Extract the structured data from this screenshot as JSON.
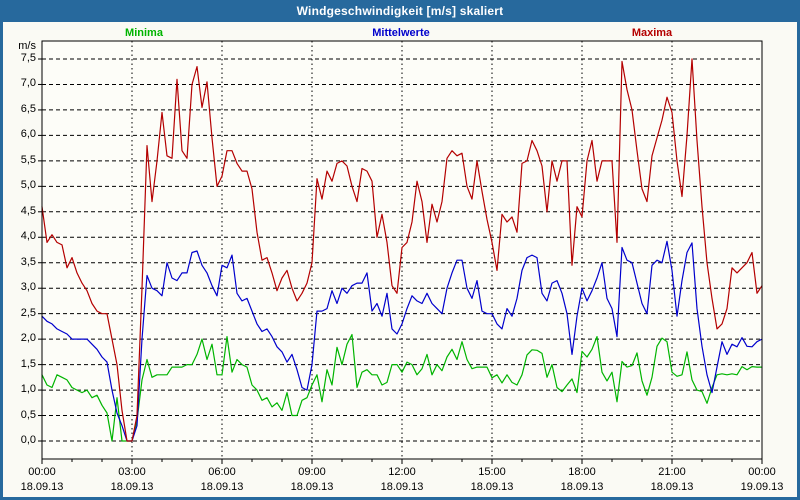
{
  "window": {
    "title": "Windgeschwindigkeit [m/s] skaliert"
  },
  "colors": {
    "frame": "#27699d",
    "titlebar": "#27699d",
    "title_text": "#ffffff",
    "page_bg": "#fafaf4",
    "plot_bg": "#fdfdf8",
    "grid": "#000000",
    "text": "#000000"
  },
  "legend": {
    "items": [
      {
        "label": "Minima",
        "color": "#00b400"
      },
      {
        "label": "Mittelwerte",
        "color": "#0000cc"
      },
      {
        "label": "Maxima",
        "color": "#b40000"
      }
    ]
  },
  "chart_data": {
    "type": "line",
    "title": "Windgeschwindigkeit [m/s] skaliert",
    "xlabel": "",
    "ylabel": "m/s",
    "ylim": [
      0,
      7.5
    ],
    "grid": true,
    "legend_position": "top",
    "x_start": "18.09.13 00:00",
    "x_end": "19.09.13 00:00",
    "x_interval_minutes": 10,
    "y_ticks": [
      {
        "v": 0.0,
        "label": "0,0"
      },
      {
        "v": 0.5,
        "label": "0,5"
      },
      {
        "v": 1.0,
        "label": "1,0"
      },
      {
        "v": 1.5,
        "label": "1,5"
      },
      {
        "v": 2.0,
        "label": "2,0"
      },
      {
        "v": 2.5,
        "label": "2,5"
      },
      {
        "v": 3.0,
        "label": "3,0"
      },
      {
        "v": 3.5,
        "label": "3,5"
      },
      {
        "v": 4.0,
        "label": "4,0"
      },
      {
        "v": 4.5,
        "label": "4,5"
      },
      {
        "v": 5.0,
        "label": "5,0"
      },
      {
        "v": 5.5,
        "label": "5,5"
      },
      {
        "v": 6.0,
        "label": "6,0"
      },
      {
        "v": 6.5,
        "label": "6,5"
      },
      {
        "v": 7.0,
        "label": "7,0"
      },
      {
        "v": 7.5,
        "label": "7,5"
      }
    ],
    "x_ticks": [
      {
        "time": "00:00",
        "date": "18.09.13"
      },
      {
        "time": "03:00",
        "date": "18.09.13"
      },
      {
        "time": "06:00",
        "date": "18.09.13"
      },
      {
        "time": "09:00",
        "date": "18.09.13"
      },
      {
        "time": "12:00",
        "date": "18.09.13"
      },
      {
        "time": "15:00",
        "date": "18.09.13"
      },
      {
        "time": "18:00",
        "date": "18.09.13"
      },
      {
        "time": "21:00",
        "date": "18.09.13"
      },
      {
        "time": "00:00",
        "date": "19.09.13"
      }
    ],
    "series": [
      {
        "name": "Minima",
        "color": "#00b400",
        "values": [
          1.3,
          1.1,
          1.05,
          1.3,
          1.25,
          1.2,
          1.05,
          1.0,
          0.95,
          1.0,
          0.85,
          0.9,
          0.7,
          0.55,
          0.0,
          0.85,
          0.0,
          0.0,
          0.0,
          0.4,
          1.2,
          1.6,
          1.25,
          1.3,
          1.3,
          1.3,
          1.45,
          1.45,
          1.45,
          1.5,
          1.5,
          1.7,
          2.0,
          1.6,
          1.9,
          1.3,
          1.3,
          2.05,
          1.35,
          1.6,
          1.5,
          1.45,
          1.1,
          1.0,
          0.8,
          0.85,
          0.67,
          0.75,
          0.6,
          0.95,
          0.5,
          0.5,
          0.8,
          0.85,
          1.1,
          1.3,
          0.77,
          1.4,
          1.1,
          1.84,
          1.5,
          1.9,
          2.09,
          1.05,
          1.35,
          1.4,
          1.3,
          1.3,
          1.1,
          1.15,
          1.5,
          1.5,
          1.35,
          1.55,
          1.5,
          1.3,
          1.42,
          1.7,
          1.3,
          1.5,
          1.38,
          1.65,
          1.8,
          1.6,
          1.95,
          1.6,
          1.42,
          1.45,
          1.45,
          1.45,
          1.24,
          1.3,
          1.14,
          1.3,
          1.15,
          1.1,
          1.3,
          1.69,
          1.79,
          1.78,
          1.72,
          1.25,
          1.5,
          1.05,
          0.97,
          1.1,
          1.22,
          0.95,
          1.76,
          1.65,
          1.8,
          2.05,
          1.35,
          1.18,
          1.35,
          0.77,
          1.56,
          1.45,
          1.48,
          1.73,
          1.18,
          0.9,
          1.25,
          1.86,
          2.02,
          1.95,
          1.35,
          1.27,
          1.3,
          1.75,
          1.2,
          1.0,
          0.97,
          0.74,
          1.05,
          1.3,
          1.32,
          1.3,
          1.32,
          1.3,
          1.46,
          1.4,
          1.46,
          1.45,
          1.45
        ]
      },
      {
        "name": "Mittelwerte",
        "color": "#0000cc",
        "values": [
          2.45,
          2.35,
          2.3,
          2.2,
          2.15,
          2.1,
          2.0,
          2.0,
          2.0,
          2.0,
          1.9,
          1.8,
          1.65,
          1.55,
          1.0,
          0.55,
          0.3,
          0.0,
          0.0,
          0.3,
          2.0,
          3.25,
          3.0,
          2.95,
          2.85,
          3.5,
          3.2,
          3.15,
          3.3,
          3.3,
          3.7,
          3.73,
          3.45,
          3.3,
          3.05,
          2.85,
          3.45,
          3.4,
          3.65,
          2.9,
          2.75,
          2.8,
          2.55,
          2.3,
          2.15,
          2.2,
          2.05,
          1.85,
          1.75,
          1.55,
          1.7,
          1.4,
          1.05,
          1.0,
          1.5,
          2.55,
          2.55,
          2.6,
          2.95,
          2.7,
          3.0,
          2.9,
          3.05,
          3.1,
          3.1,
          3.3,
          2.55,
          2.7,
          2.45,
          2.9,
          2.2,
          2.1,
          2.3,
          2.6,
          2.85,
          2.75,
          2.7,
          2.9,
          2.7,
          2.6,
          2.5,
          3.0,
          3.3,
          3.55,
          3.55,
          3.0,
          2.8,
          3.15,
          2.55,
          2.5,
          2.5,
          2.3,
          2.2,
          2.6,
          2.45,
          2.8,
          3.35,
          3.6,
          3.65,
          3.6,
          2.9,
          2.75,
          3.1,
          3.15,
          2.9,
          2.5,
          1.7,
          2.45,
          3.0,
          2.75,
          2.95,
          3.2,
          3.5,
          2.8,
          2.6,
          2.05,
          3.8,
          3.55,
          3.5,
          3.1,
          2.7,
          2.5,
          3.45,
          3.55,
          3.5,
          3.92,
          3.35,
          2.45,
          3.15,
          3.7,
          3.89,
          2.6,
          1.86,
          1.3,
          0.95,
          1.45,
          1.95,
          1.7,
          1.9,
          1.85,
          2.03,
          1.86,
          1.85,
          1.95,
          2.0
        ]
      },
      {
        "name": "Maxima",
        "color": "#b40000",
        "values": [
          4.6,
          3.9,
          4.05,
          3.9,
          3.85,
          3.4,
          3.6,
          3.3,
          3.1,
          2.95,
          2.7,
          2.55,
          2.5,
          2.5,
          2.0,
          1.5,
          0.6,
          0.0,
          0.0,
          0.5,
          3.0,
          5.8,
          4.7,
          5.5,
          6.45,
          5.6,
          5.55,
          7.1,
          5.7,
          5.55,
          7.0,
          7.35,
          6.55,
          7.05,
          5.95,
          5.0,
          5.2,
          5.7,
          5.7,
          5.45,
          5.3,
          5.3,
          4.95,
          4.1,
          3.55,
          3.6,
          3.3,
          2.95,
          3.2,
          3.35,
          3.0,
          2.75,
          2.9,
          3.1,
          3.5,
          5.15,
          4.75,
          5.3,
          5.1,
          5.45,
          5.5,
          5.4,
          5.0,
          4.7,
          5.35,
          5.3,
          5.1,
          4.0,
          4.45,
          3.9,
          3.05,
          2.9,
          3.8,
          3.9,
          4.3,
          5.1,
          4.7,
          3.9,
          4.65,
          4.3,
          4.7,
          5.55,
          5.7,
          5.6,
          5.65,
          5.0,
          4.75,
          5.5,
          4.9,
          4.35,
          3.9,
          3.35,
          4.45,
          4.3,
          4.4,
          4.1,
          5.45,
          5.5,
          5.9,
          5.7,
          5.4,
          4.5,
          5.5,
          5.1,
          5.5,
          5.5,
          3.45,
          4.6,
          4.4,
          5.5,
          5.9,
          5.1,
          5.5,
          5.5,
          5.5,
          3.9,
          7.45,
          6.9,
          6.5,
          5.7,
          4.95,
          4.7,
          5.6,
          5.95,
          6.3,
          6.75,
          6.45,
          5.5,
          4.8,
          6.0,
          7.5,
          5.9,
          4.6,
          3.5,
          2.8,
          2.2,
          2.3,
          2.6,
          3.4,
          3.3,
          3.4,
          3.5,
          3.7,
          2.9,
          3.05
        ]
      }
    ]
  }
}
